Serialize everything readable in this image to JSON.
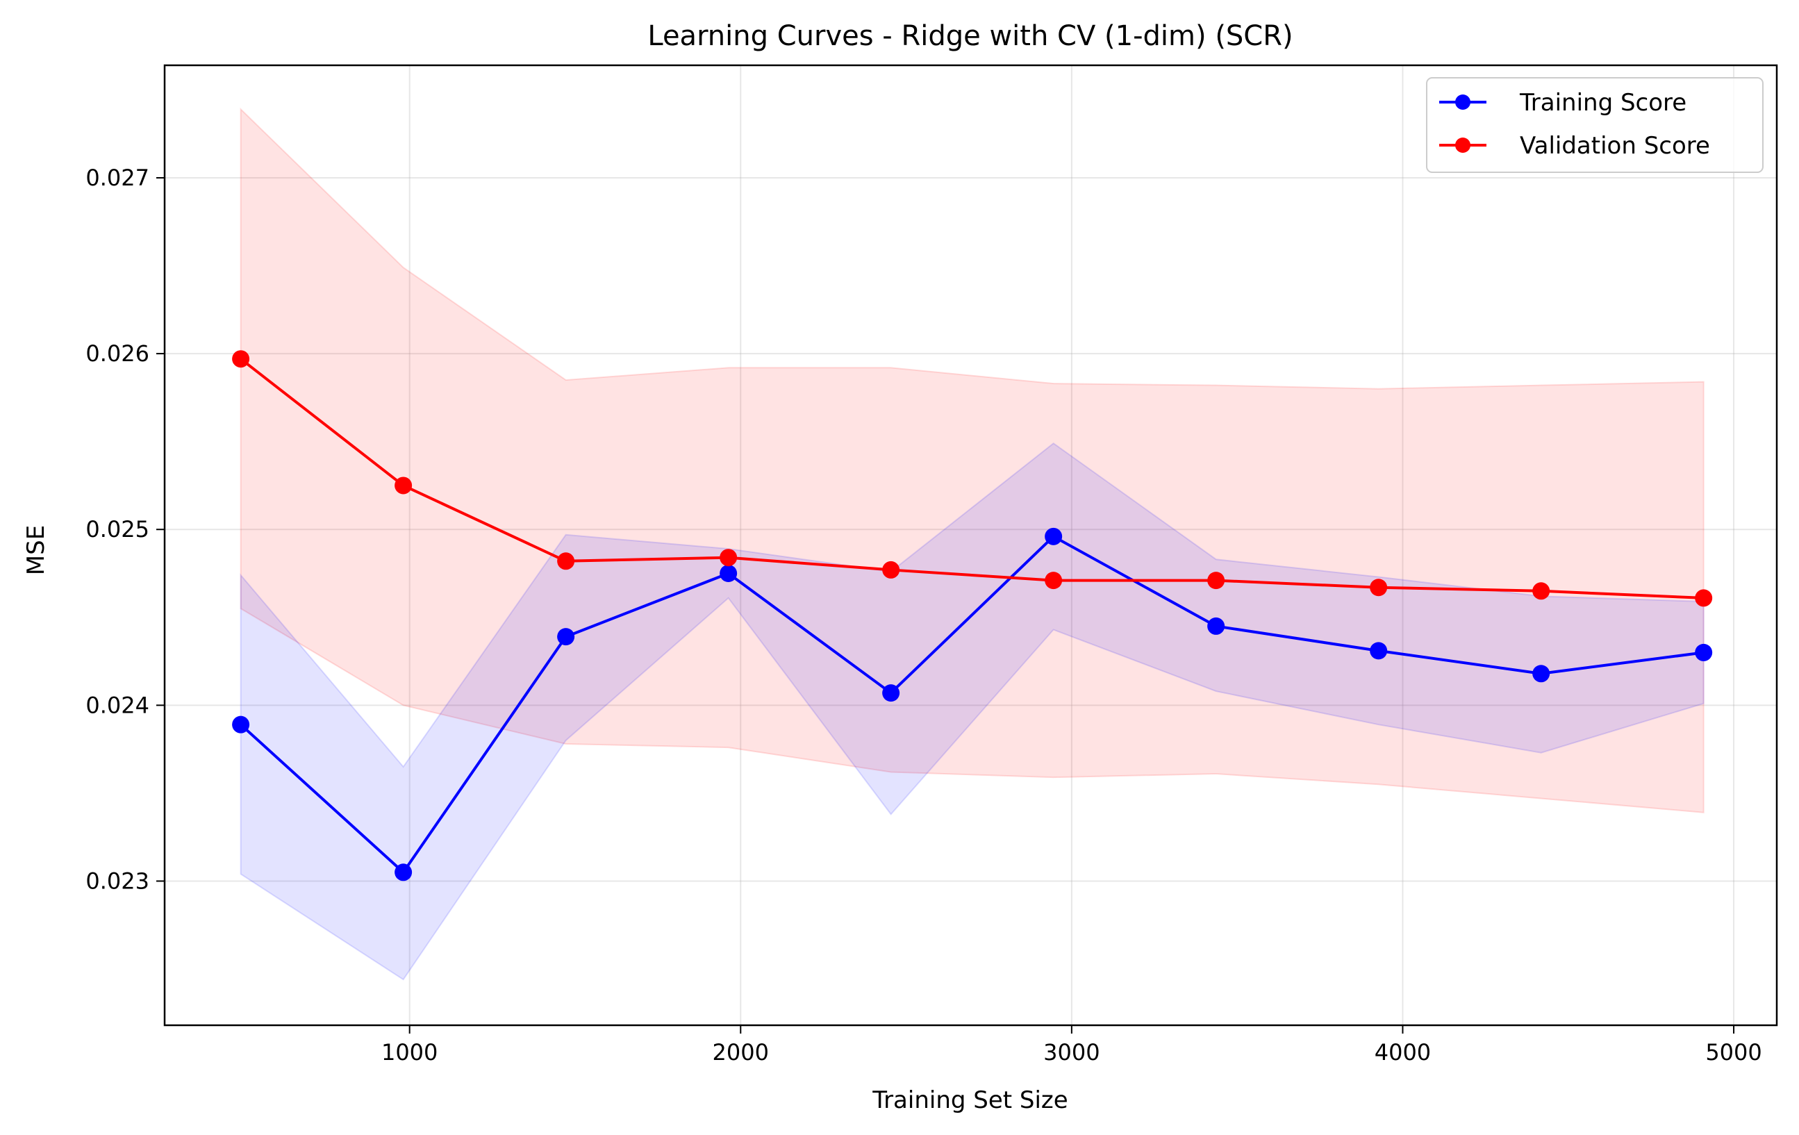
{
  "chart_data": {
    "type": "line",
    "title": "Learning Curves - Ridge with CV (1-dim) (SCR)",
    "xlabel": "Training Set Size",
    "ylabel": "MSE",
    "xlim": [
      260,
      5130
    ],
    "ylim": [
      0.02218,
      0.02764
    ],
    "xticks": [
      1000,
      2000,
      3000,
      4000,
      5000
    ],
    "xtick_labels": [
      "1000",
      "2000",
      "3000",
      "4000",
      "5000"
    ],
    "yticks": [
      0.023,
      0.024,
      0.025,
      0.026,
      0.027
    ],
    "ytick_labels": [
      "0.023",
      "0.024",
      "0.025",
      "0.026",
      "0.027"
    ],
    "grid": true,
    "legend_position": "top-right",
    "x": [
      490,
      981,
      1472,
      1963,
      2454,
      2945,
      3436,
      3927,
      4418,
      4909
    ],
    "series": [
      {
        "name": "Training Score",
        "color": "#0000ff",
        "band_color": "#0000ff",
        "values": [
          0.02389,
          0.02305,
          0.02439,
          0.02475,
          0.02407,
          0.02496,
          0.02445,
          0.02431,
          0.02418,
          0.0243
        ],
        "lower": [
          0.02304,
          0.02244,
          0.0238,
          0.02461,
          0.02338,
          0.02443,
          0.02408,
          0.02389,
          0.02373,
          0.02401
        ],
        "upper": [
          0.02474,
          0.02365,
          0.02497,
          0.02489,
          0.02476,
          0.02549,
          0.02483,
          0.02473,
          0.02462,
          0.02459
        ]
      },
      {
        "name": "Validation Score",
        "color": "#ff0000",
        "band_color": "#ff0000",
        "values": [
          0.02597,
          0.02525,
          0.02482,
          0.02484,
          0.02477,
          0.02471,
          0.02471,
          0.02467,
          0.02465,
          0.02461
        ],
        "lower": [
          0.02455,
          0.024,
          0.02378,
          0.02376,
          0.02362,
          0.02359,
          0.02361,
          0.02355,
          0.02347,
          0.02339
        ],
        "upper": [
          0.02739,
          0.02649,
          0.02585,
          0.02592,
          0.02592,
          0.02583,
          0.02582,
          0.0258,
          0.02582,
          0.02584
        ]
      }
    ]
  }
}
